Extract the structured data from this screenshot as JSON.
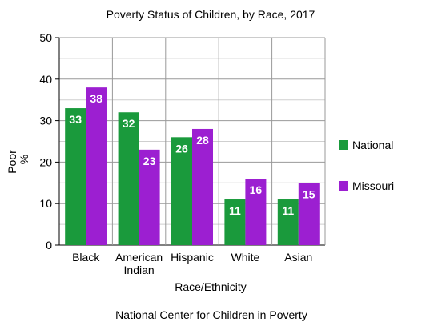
{
  "chart_data": {
    "type": "bar",
    "title": "Poverty Status of Children, by Race, 2017",
    "xlabel": "Race/Ethnicity",
    "ylabel_line1": "Poor",
    "ylabel_line2": "%",
    "source": "National Center for Children in Poverty",
    "categories": [
      [
        "Black"
      ],
      [
        "American",
        "Indian"
      ],
      [
        "Hispanic"
      ],
      [
        "White"
      ],
      [
        "Asian"
      ]
    ],
    "series": [
      {
        "name": "National",
        "color": "#1a9a3c",
        "values": [
          33,
          32,
          26,
          11,
          11
        ]
      },
      {
        "name": "Missouri",
        "color": "#9c1fd1",
        "values": [
          38,
          23,
          28,
          16,
          15
        ]
      }
    ],
    "ylim": [
      0,
      50
    ],
    "yticks": [
      0,
      10,
      20,
      30,
      40,
      50
    ],
    "grid": true,
    "legend_position": "right"
  }
}
